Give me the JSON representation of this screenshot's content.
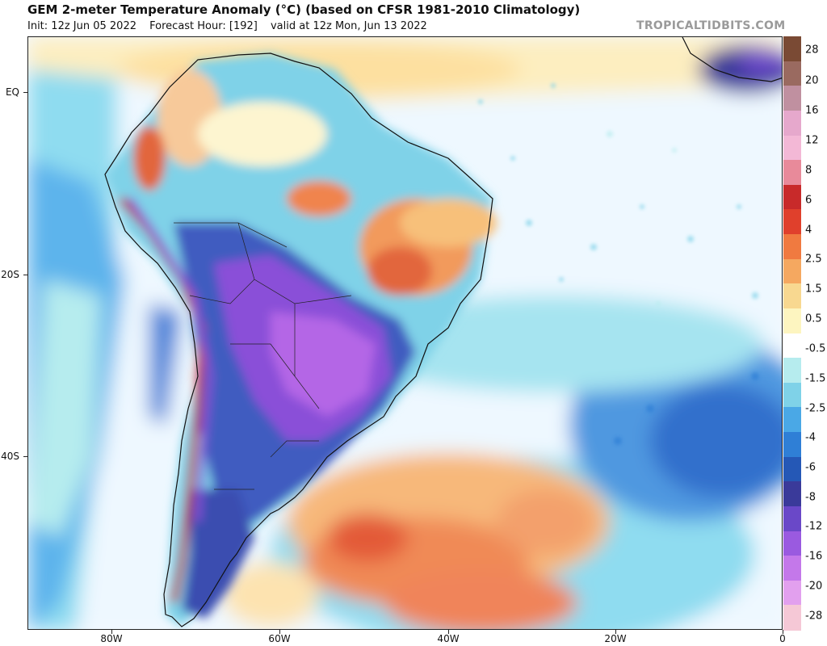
{
  "header": {
    "title": "GEM 2-meter Temperature Anomaly (°C) (based on CFSR 1981-2010 Climatology)",
    "init": "Init: 12z Jun 05 2022",
    "forecast_hour": "Forecast Hour: [192]",
    "valid": "valid at 12z Mon, Jun 13 2022",
    "credit": "TROPICALTIDBITS.COM"
  },
  "map": {
    "lat_labels": [
      "EQ",
      "20S",
      "40S"
    ],
    "lon_labels": [
      "80W",
      "60W",
      "40W",
      "20W",
      "0"
    ]
  },
  "colorbar": {
    "labels": [
      "28",
      "20",
      "16",
      "12",
      "8",
      "6",
      "4",
      "2.5",
      "1.5",
      "0.5",
      "-0.5",
      "-1.5",
      "-2.5",
      "-4",
      "-6",
      "-8",
      "-12",
      "-16",
      "-20",
      "-28"
    ],
    "colors": [
      "#7a4a34",
      "#9a6a60",
      "#c090a0",
      "#e6a8cc",
      "#f3b8d6",
      "#e88a9a",
      "#c82a2a",
      "#e0402c",
      "#f07a40",
      "#f5a860",
      "#f8d890",
      "#fdf5c0",
      "#ffffff",
      "#b6ecee",
      "#7fd2e8",
      "#4aa8e6",
      "#2f7fd6",
      "#2558b6",
      "#3a3a9a",
      "#6a48c8",
      "#9a5ae0",
      "#c478ea",
      "#e2a0ee",
      "#f5c8d6"
    ]
  }
}
